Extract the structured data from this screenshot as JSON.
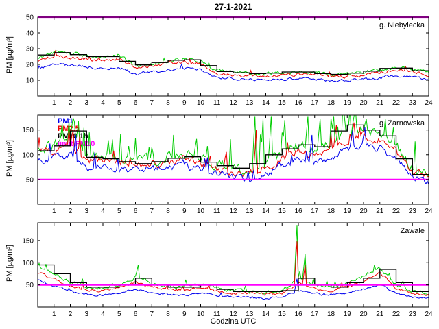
{
  "title": "27-1-2021",
  "xlabel": "Godzina UTC",
  "ylabel": "PM [µg/m³]",
  "xticks": [
    1,
    2,
    3,
    4,
    5,
    6,
    7,
    8,
    9,
    10,
    11,
    12,
    13,
    14,
    15,
    16,
    17,
    18,
    19,
    20,
    21,
    22,
    23,
    24
  ],
  "legend": [
    {
      "label": "PM1",
      "color": "#0000ee"
    },
    {
      "label": "PM2.5",
      "color": "#ee0000"
    },
    {
      "label": "PM10 1h",
      "color": "#000000"
    },
    {
      "label": "limit PM10",
      "color": "#ff00ff"
    }
  ],
  "chart_data": [
    {
      "type": "line",
      "station": "g. Niebylecka",
      "ylim": [
        0,
        50
      ],
      "yticks": [
        10,
        20,
        30,
        40,
        50
      ],
      "limit": 50,
      "series": [
        {
          "name": "PM1",
          "color": "#0000ee",
          "hourly": [
            17,
            20,
            19.5,
            18.5,
            17.5,
            18,
            14,
            15.5,
            16.5,
            17.5,
            16.5,
            11.5,
            11,
            10.5,
            10,
            10.5,
            11,
            10.5,
            9.5,
            10,
            10.5,
            11.5,
            13,
            12,
            10.5
          ],
          "noise": {
            "amp": 0.8,
            "spike_p": 0.01,
            "spike_a": 2
          }
        },
        {
          "name": "PM2.5",
          "color": "#ee0000",
          "hourly": [
            22,
            25.5,
            24.5,
            23.5,
            22.5,
            23.5,
            17.5,
            19,
            20.5,
            21.5,
            20.5,
            14.5,
            13.5,
            13,
            12.5,
            13.5,
            14,
            13.5,
            12,
            12.5,
            13.5,
            15,
            17,
            15.5,
            13.5
          ],
          "noise": {
            "amp": 1.0,
            "spike_p": 0.02,
            "spike_a": 2.5
          }
        },
        {
          "name": "PM10",
          "color": "#00cc00",
          "hourly": [
            24,
            28,
            27,
            25.5,
            24.5,
            25.5,
            19,
            20.5,
            22,
            23.5,
            22.5,
            16,
            15,
            14.5,
            14,
            15,
            15.5,
            15,
            13.5,
            14,
            15,
            16.5,
            18.5,
            17,
            15
          ],
          "noise": {
            "amp": 1.1,
            "spike_p": 0.02,
            "spike_a": 3
          }
        }
      ],
      "pm10_1h": [
        26,
        27.5,
        26.2,
        25,
        25,
        22,
        19.7,
        21.2,
        22.7,
        23,
        19.2,
        15.5,
        14.7,
        14.2,
        14.5,
        15.2,
        15.2,
        14.2,
        13.7,
        14.5,
        15.7,
        17.5,
        17.7,
        16
      ]
    },
    {
      "type": "line",
      "station": "g. Żarnowska",
      "ylim": [
        0,
        180
      ],
      "yticks": [
        50,
        100,
        150
      ],
      "limit": 50,
      "series": [
        {
          "name": "PM1",
          "color": "#0000ee",
          "hourly": [
            85,
            92,
            100,
            72,
            76,
            72,
            68,
            70,
            73,
            78,
            70,
            62,
            55,
            50,
            62,
            78,
            92,
            85,
            96,
            112,
            122,
            112,
            90,
            55,
            45
          ],
          "noise": {
            "amp": 7,
            "spike_p": 0.04,
            "spike_a": 25
          },
          "spikes": [
            [
              2.3,
              140
            ],
            [
              16.8,
              140
            ],
            [
              19.3,
              150
            ],
            [
              20.1,
              155
            ]
          ]
        },
        {
          "name": "PM2.5",
          "color": "#ee0000",
          "hourly": [
            100,
            108,
            122,
            86,
            89,
            85,
            80,
            82,
            86,
            92,
            82,
            73,
            65,
            60,
            74,
            92,
            108,
            100,
            113,
            130,
            140,
            128,
            106,
            65,
            52
          ],
          "noise": {
            "amp": 8,
            "spike_p": 0.05,
            "spike_a": 30
          },
          "spikes": [
            [
              2.2,
              150
            ],
            [
              13.4,
              150
            ],
            [
              18.3,
              160
            ],
            [
              19.4,
              165
            ]
          ]
        },
        {
          "name": "PM10",
          "color": "#00cc00",
          "hourly": [
            112,
            120,
            138,
            96,
            99,
            94,
            88,
            90,
            95,
            102,
            90,
            80,
            72,
            68,
            84,
            102,
            120,
            112,
            126,
            142,
            152,
            140,
            118,
            72,
            58
          ],
          "noise": {
            "amp": 10,
            "spike_p": 0.1,
            "spike_a": 55
          },
          "spikes": [
            [
              2.2,
              175
            ],
            [
              2.5,
              168
            ],
            [
              13.3,
              178
            ],
            [
              13.8,
              172
            ],
            [
              14.3,
              178
            ],
            [
              15.2,
              170
            ],
            [
              16.6,
              178
            ],
            [
              17.3,
              172
            ],
            [
              18.2,
              178
            ],
            [
              18.8,
              175
            ],
            [
              19.4,
              178
            ],
            [
              20.2,
              172
            ]
          ]
        }
      ],
      "pm10_1h": [
        108,
        118,
        148,
        95,
        92,
        86,
        82,
        86,
        93,
        96,
        85,
        78,
        73,
        82,
        100,
        112,
        120,
        116,
        148,
        160,
        150,
        138,
        92,
        60
      ]
    },
    {
      "type": "line",
      "station": "Zawale",
      "ylim": [
        0,
        190
      ],
      "yticks": [
        50,
        100,
        150
      ],
      "limit": 50,
      "series": [
        {
          "name": "PM1",
          "color": "#0000ee",
          "hourly": [
            60,
            48,
            36,
            28,
            27,
            32,
            40,
            32,
            29,
            27,
            32,
            26,
            23,
            21,
            20,
            21,
            38,
            30,
            26,
            32,
            40,
            52,
            30,
            22,
            19
          ],
          "noise": {
            "amp": 2.2,
            "spike_p": 0.03,
            "spike_a": 6
          },
          "spikes": [
            [
              15.95,
              64
            ]
          ]
        },
        {
          "name": "PM2.5",
          "color": "#ee0000",
          "hourly": [
            78,
            62,
            48,
            38,
            37,
            44,
            56,
            44,
            40,
            38,
            44,
            36,
            32,
            30,
            29,
            30,
            55,
            42,
            37,
            46,
            58,
            78,
            42,
            30,
            26
          ],
          "noise": {
            "amp": 2.8,
            "spike_p": 0.04,
            "spike_a": 9
          },
          "spikes": [
            [
              15.95,
              148
            ],
            [
              16.4,
              95
            ]
          ]
        },
        {
          "name": "PM10",
          "color": "#00cc00",
          "hourly": [
            95,
            75,
            57,
            45,
            44,
            52,
            68,
            52,
            47,
            45,
            52,
            42,
            38,
            35,
            34,
            36,
            65,
            50,
            44,
            55,
            68,
            88,
            50,
            35,
            30
          ],
          "noise": {
            "amp": 3.5,
            "spike_p": 0.05,
            "spike_a": 14
          },
          "spikes": [
            [
              6.15,
              95
            ],
            [
              15.95,
              185
            ],
            [
              16.4,
              120
            ]
          ]
        }
      ],
      "pm10_1h": [
        95,
        75,
        55,
        45,
        45,
        50,
        65,
        50,
        45,
        45,
        50,
        40,
        35,
        35,
        35,
        37,
        65,
        50,
        45,
        55,
        65,
        85,
        55,
        35
      ]
    }
  ]
}
